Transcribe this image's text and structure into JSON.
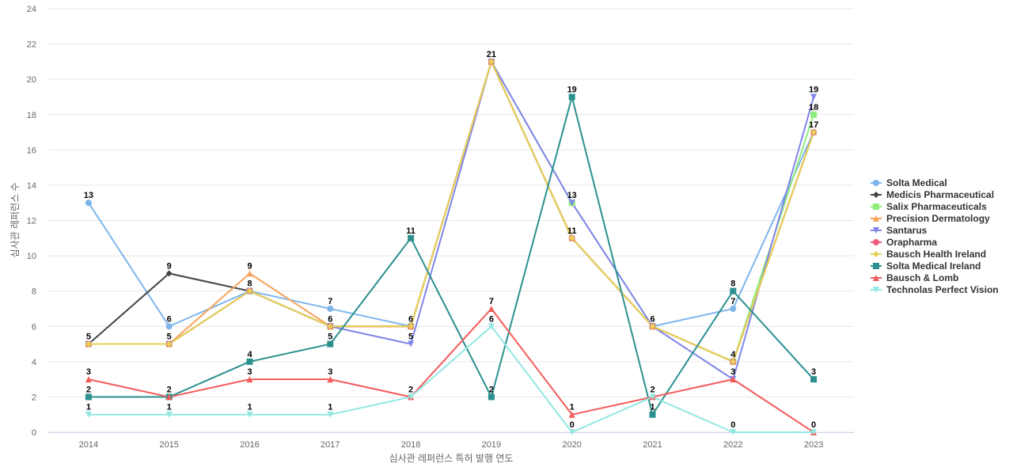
{
  "chart_data": {
    "type": "line",
    "title": "",
    "xlabel": "심사관 레퍼런스 특허 발행 연도",
    "ylabel": "심사관 레퍼런스 수",
    "ylim": [
      0,
      24
    ],
    "yticks": [
      0,
      2,
      4,
      6,
      8,
      10,
      12,
      14,
      16,
      18,
      20,
      22,
      24
    ],
    "grid": true,
    "legend_position": "right",
    "categories": [
      "2014",
      "2015",
      "2016",
      "2017",
      "2018",
      "2019",
      "2020",
      "2021",
      "2022",
      "2023"
    ],
    "series": [
      {
        "name": "Solta Medical",
        "color": "#7cb5ec",
        "marker": "circle",
        "values": [
          13,
          6,
          8,
          7,
          6,
          21,
          11,
          6,
          7,
          17
        ]
      },
      {
        "name": "Medicis Pharmaceutical",
        "color": "#434348",
        "marker": "diamond",
        "values": [
          5,
          9,
          8,
          6,
          6,
          21,
          11,
          6,
          4,
          17
        ]
      },
      {
        "name": "Salix Pharmaceuticals",
        "color": "#90ed7d",
        "marker": "square",
        "values": [
          5,
          5,
          8,
          6,
          6,
          21,
          13,
          6,
          4,
          18
        ]
      },
      {
        "name": "Precision Dermatology",
        "color": "#f7a35c",
        "marker": "triangle",
        "values": [
          5,
          5,
          9,
          6,
          6,
          21,
          11,
          6,
          4,
          17
        ]
      },
      {
        "name": "Santarus",
        "color": "#8085e9",
        "marker": "triangle-down",
        "values": [
          5,
          5,
          8,
          6,
          5,
          21,
          13,
          6,
          3,
          19
        ]
      },
      {
        "name": "Orapharma",
        "color": "#f15c80",
        "marker": "circle",
        "values": [
          5,
          5,
          8,
          6,
          6,
          21,
          11,
          6,
          4,
          17
        ]
      },
      {
        "name": "Bausch Health Ireland",
        "color": "#e4d354",
        "marker": "diamond",
        "values": [
          5,
          5,
          8,
          6,
          6,
          21,
          11,
          6,
          4,
          17
        ]
      },
      {
        "name": "Solta Medical Ireland",
        "color": "#2b908f",
        "marker": "square",
        "values": [
          2,
          2,
          4,
          5,
          11,
          2,
          19,
          1,
          8,
          3
        ]
      },
      {
        "name": "Bausch & Lomb",
        "color": "#f45b5b",
        "marker": "triangle",
        "values": [
          3,
          2,
          3,
          3,
          2,
          7,
          1,
          2,
          3,
          0
        ]
      },
      {
        "name": "Technolas Perfect Vision",
        "color": "#91e8e1",
        "marker": "triangle-down",
        "values": [
          1,
          1,
          1,
          1,
          2,
          6,
          0,
          2,
          0,
          0
        ]
      }
    ],
    "data_labels": [
      {
        "category": "2014",
        "value": 13,
        "text": "13"
      },
      {
        "category": "2014",
        "value": 5,
        "text": "5"
      },
      {
        "category": "2014",
        "value": 3,
        "text": "3"
      },
      {
        "category": "2014",
        "value": 2,
        "text": "2"
      },
      {
        "category": "2014",
        "value": 1,
        "text": "1"
      },
      {
        "category": "2015",
        "value": 9,
        "text": "9"
      },
      {
        "category": "2015",
        "value": 6,
        "text": "6"
      },
      {
        "category": "2015",
        "value": 5,
        "text": "5"
      },
      {
        "category": "2015",
        "value": 2,
        "text": "2"
      },
      {
        "category": "2015",
        "value": 1,
        "text": "1"
      },
      {
        "category": "2016",
        "value": 9,
        "text": "9"
      },
      {
        "category": "2016",
        "value": 8,
        "text": "8"
      },
      {
        "category": "2016",
        "value": 4,
        "text": "4"
      },
      {
        "category": "2016",
        "value": 3,
        "text": "3"
      },
      {
        "category": "2016",
        "value": 1,
        "text": "1"
      },
      {
        "category": "2017",
        "value": 7,
        "text": "7"
      },
      {
        "category": "2017",
        "value": 6,
        "text": "6"
      },
      {
        "category": "2017",
        "value": 5,
        "text": "5"
      },
      {
        "category": "2017",
        "value": 3,
        "text": "3"
      },
      {
        "category": "2017",
        "value": 1,
        "text": "1"
      },
      {
        "category": "2018",
        "value": 11,
        "text": "11"
      },
      {
        "category": "2018",
        "value": 6,
        "text": "6"
      },
      {
        "category": "2018",
        "value": 5,
        "text": "5"
      },
      {
        "category": "2018",
        "value": 2,
        "text": "2"
      },
      {
        "category": "2019",
        "value": 21,
        "text": "21"
      },
      {
        "category": "2019",
        "value": 7,
        "text": "7"
      },
      {
        "category": "2019",
        "value": 6,
        "text": "6"
      },
      {
        "category": "2019",
        "value": 2,
        "text": "2"
      },
      {
        "category": "2020",
        "value": 19,
        "text": "19"
      },
      {
        "category": "2020",
        "value": 13,
        "text": "13"
      },
      {
        "category": "2020",
        "value": 11,
        "text": "11"
      },
      {
        "category": "2020",
        "value": 1,
        "text": "1"
      },
      {
        "category": "2020",
        "value": 0,
        "text": "0"
      },
      {
        "category": "2021",
        "value": 6,
        "text": "6"
      },
      {
        "category": "2021",
        "value": 2,
        "text": "2"
      },
      {
        "category": "2021",
        "value": 1,
        "text": "1"
      },
      {
        "category": "2022",
        "value": 8,
        "text": "8"
      },
      {
        "category": "2022",
        "value": 7,
        "text": "7"
      },
      {
        "category": "2022",
        "value": 4,
        "text": "4"
      },
      {
        "category": "2022",
        "value": 3,
        "text": "3"
      },
      {
        "category": "2022",
        "value": 0,
        "text": "0"
      },
      {
        "category": "2023",
        "value": 19,
        "text": "19"
      },
      {
        "category": "2023",
        "value": 18,
        "text": "18"
      },
      {
        "category": "2023",
        "value": 17,
        "text": "17"
      },
      {
        "category": "2023",
        "value": 3,
        "text": "3"
      },
      {
        "category": "2023",
        "value": 0,
        "text": "0"
      }
    ]
  }
}
